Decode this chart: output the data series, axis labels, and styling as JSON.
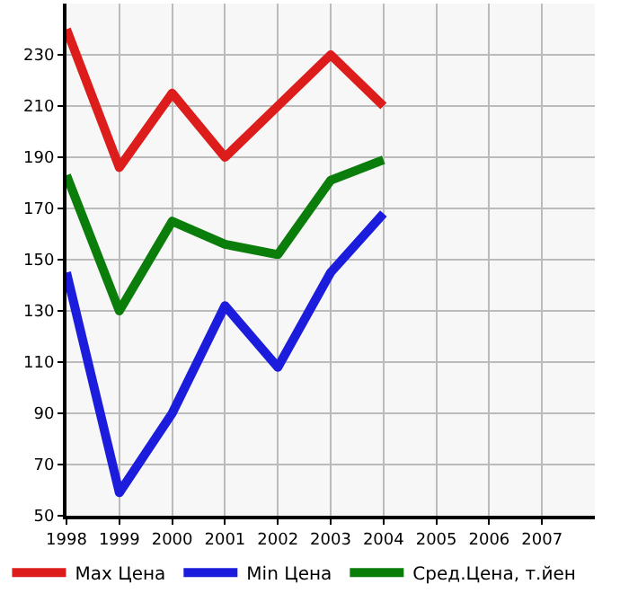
{
  "chart_data": {
    "type": "line",
    "x": [
      1998,
      1999,
      2000,
      2001,
      2002,
      2003,
      2004
    ],
    "series": [
      {
        "name": "Max Цена",
        "color": "#dd1c1c",
        "values": [
          240,
          186,
          215,
          190,
          210,
          230,
          210
        ]
      },
      {
        "name": "Min Цена",
        "color": "#1c1cdd",
        "values": [
          145,
          59,
          90,
          132,
          108,
          145,
          168
        ]
      },
      {
        "name": "Сред.Цена, т.йен",
        "color": "#0a7d0a",
        "values": [
          183,
          130,
          165,
          156,
          152,
          181,
          189
        ]
      }
    ],
    "xlim": [
      1998,
      2008
    ],
    "xticks": [
      1998,
      1999,
      2000,
      2001,
      2002,
      2003,
      2004,
      2005,
      2006,
      2007
    ],
    "ylim": [
      50,
      250
    ],
    "yticks": [
      50,
      70,
      90,
      110,
      130,
      150,
      170,
      190,
      210,
      230
    ],
    "grid": true,
    "legend": "bottom",
    "marker": "none",
    "line_style": "solid"
  }
}
